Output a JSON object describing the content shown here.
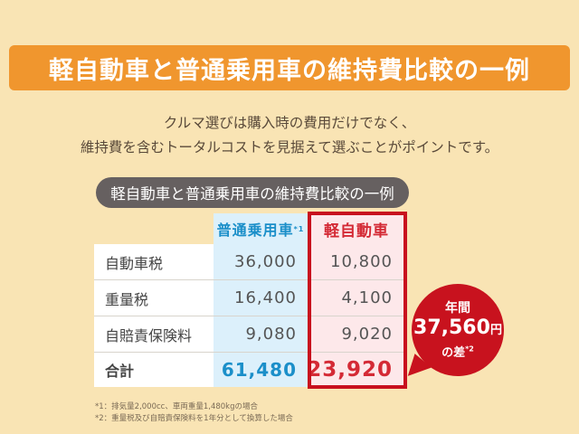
{
  "title": "軽自動車と普通乗用車の維持費比較の一例",
  "lead": [
    "クルマ選びは購入時の費用だけでなく、",
    "維持費を含むトータルコストを見据えて選ぶことがポイントです。"
  ],
  "table": {
    "caption": "軽自動車と普通乗用車の維持費比較の一例",
    "headers": [
      "普通乗用車",
      "軽自動車"
    ],
    "header_note": "*1",
    "rows": [
      {
        "label": "自動車税",
        "regular": "36,000",
        "kei": "10,800"
      },
      {
        "label": "重量税",
        "regular": "16,400",
        "kei": "4,100"
      },
      {
        "label": "自賠責保険料",
        "regular": "9,080",
        "kei": "9,020"
      },
      {
        "label": "合計",
        "regular": "61,480",
        "kei": "23,920"
      }
    ]
  },
  "bubble": {
    "line1": "年間",
    "amount": "37,560",
    "unit": "円",
    "line3": "の差",
    "note": "*2"
  },
  "notes": [
    "*1：排気量2,000cc、車両重量1,480kgの場合",
    "*2：重量税及び自賠責保険料を1年分として換算した場合"
  ],
  "colors": {
    "background": "#f9e4b4",
    "banner": "#f0962e",
    "accent_red": "#c8101e",
    "accent_blue": "#1b8fc9"
  }
}
